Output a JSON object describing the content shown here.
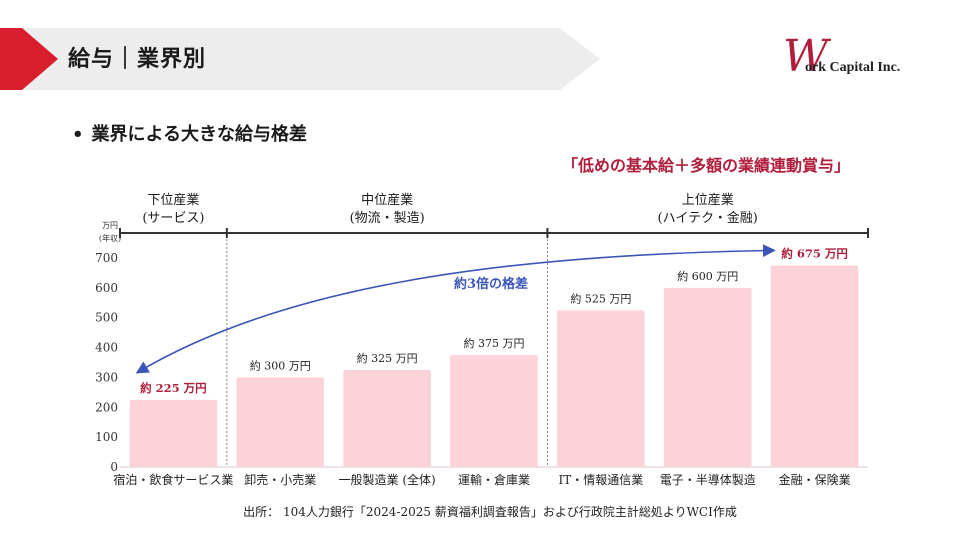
{
  "header": {
    "title": "給与｜業界別",
    "logo_mark": "W",
    "logo_text": "ork Capital Inc."
  },
  "bullet": "業界による大きな給与格差",
  "callout": "「低めの基本給＋多額の業績連動賞与」",
  "source": "出所： 104人力銀行「2024-2025 薪資福利調査報告」および行政院主計総処よりWCI作成",
  "colors": {
    "accent": "#d81e2c",
    "bar": "#fbd3d8",
    "highlight_text": "#b01e3c",
    "arrow": "#3b56b8"
  },
  "chart_data": {
    "type": "bar",
    "unit_label_line1": "万円",
    "unit_label_line2": "(年収)",
    "categories": [
      "宿泊・飲食サービス業",
      "卸売・小売業",
      "一般製造業 (全体)",
      "運輸・倉庫業",
      "IT・情報通信業",
      "電子・半導体製造",
      "金融・保険業"
    ],
    "values": [
      225,
      300,
      325,
      375,
      525,
      600,
      675
    ],
    "value_labels": [
      "約 225 万円",
      "約 300 万円",
      "約 325 万円",
      "約 375 万円",
      "約 525 万円",
      "約 600 万円",
      "約 675 万円"
    ],
    "highlight": [
      true,
      false,
      false,
      false,
      false,
      false,
      true
    ],
    "ylim": [
      0,
      700
    ],
    "yticks": [
      "0",
      "100",
      "200",
      "300",
      "400",
      "500",
      "600",
      "700"
    ],
    "groups": [
      {
        "label1": "下位産業",
        "label2": "(サービス)",
        "start": 0,
        "end": 0
      },
      {
        "label1": "中位産業",
        "label2": "(物流・製造)",
        "start": 1,
        "end": 3
      },
      {
        "label1": "上位産業",
        "label2": "(ハイテク・金融)",
        "start": 4,
        "end": 6
      }
    ],
    "annotation": "約3倍の格差"
  }
}
